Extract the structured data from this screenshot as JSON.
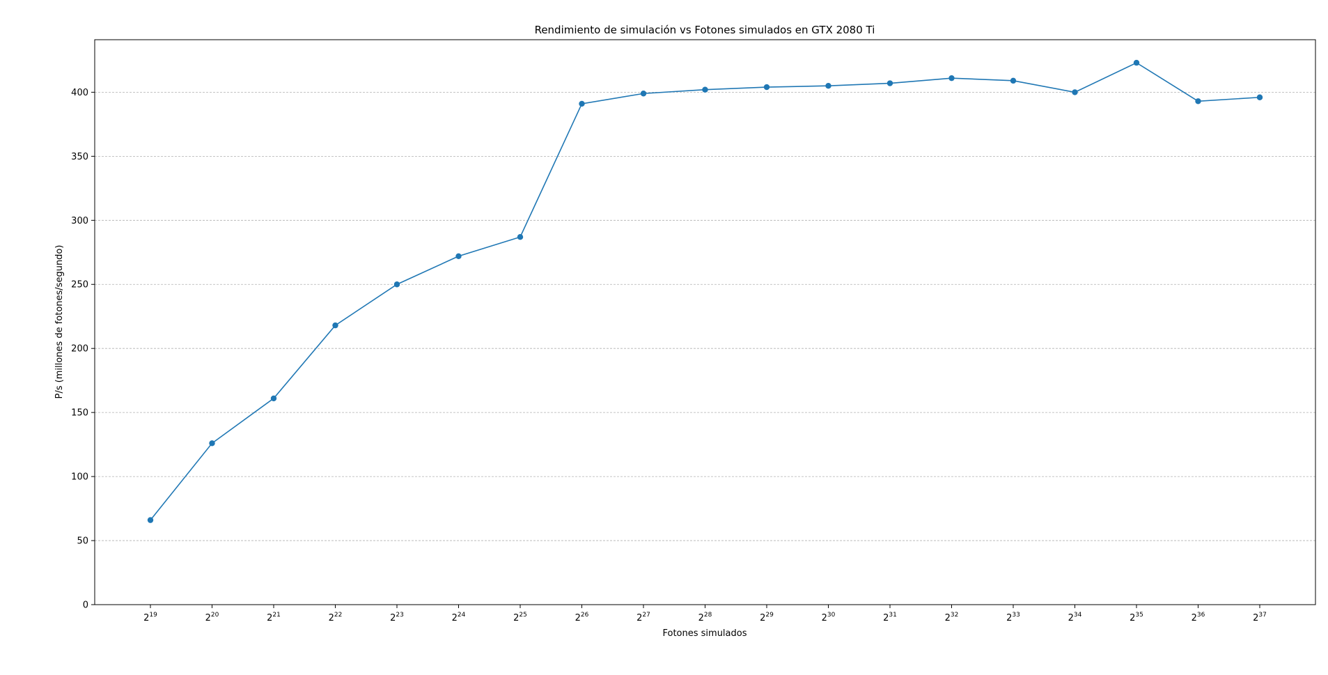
{
  "chart_data": {
    "type": "line",
    "title": "Rendimiento de simulación vs Fotones simulados en GTX 2080 Ti",
    "xlabel": "Fotones simulados",
    "ylabel": "P/s (millones de fotones/segundo)",
    "x_tick_base": "2",
    "x_exponents": [
      "19",
      "20",
      "21",
      "22",
      "23",
      "24",
      "25",
      "26",
      "27",
      "28",
      "29",
      "30",
      "31",
      "32",
      "33",
      "34",
      "35",
      "36",
      "37"
    ],
    "y_ticks": [
      "0",
      "50",
      "100",
      "150",
      "200",
      "250",
      "300",
      "350",
      "400"
    ],
    "ylim": [
      0,
      441
    ],
    "y_grid": true,
    "x_grid": false,
    "marker": "circle",
    "series": [
      {
        "color": "#1f77b4",
        "x": [
          19,
          20,
          21,
          22,
          23,
          24,
          25,
          26,
          27,
          28,
          29,
          30,
          31,
          32,
          33,
          34,
          35,
          36,
          37
        ],
        "values": [
          66,
          126,
          161,
          218,
          250,
          272,
          287,
          391,
          399,
          402,
          404,
          405,
          407,
          411,
          409,
          400,
          423,
          393,
          396
        ]
      }
    ]
  }
}
